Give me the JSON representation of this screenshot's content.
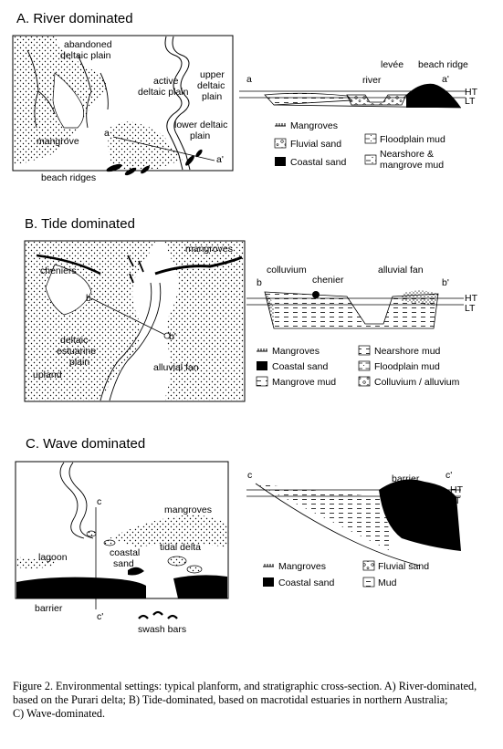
{
  "panels": {
    "river": {
      "title": "A. River dominated",
      "plan_labels": {
        "abandoned": "abandoned",
        "deltaic_plain": "deltaic plain",
        "active": "active",
        "active_deltaic_plain": "deltaic plain",
        "upper": "upper",
        "upper_deltaic": "deltaic",
        "upper_plain": "plain",
        "mangrove": "mangrove",
        "lower_deltaic": "lower deltaic",
        "lower_plain": "plain",
        "beach_ridges": "beach ridges",
        "a": "a",
        "a_prime": "a'"
      },
      "section_labels": {
        "a": "a",
        "a_prime": "a'",
        "river": "river",
        "levee": "levée",
        "beach_ridge": "beach ridge",
        "ht": "HT",
        "lt": "LT"
      },
      "legend": {
        "mangroves": "Mangroves",
        "fluvial_sand": "Fluvial sand",
        "coastal_sand": "Coastal sand",
        "floodplain_mud": "Floodplain mud",
        "nearshore_1": "Nearshore &",
        "nearshore_2": "mangrove mud"
      }
    },
    "tide": {
      "title": "B. Tide dominated",
      "plan_labels": {
        "mangroves": "mangroves",
        "cheniers": "cheniers",
        "b": "b",
        "b_prime": "b'",
        "deltaic": "deltaic-",
        "estuarine": "estuarine",
        "plain": "plain",
        "upland": "upland",
        "alluvial_fan": "alluvial fan"
      },
      "section_labels": {
        "colluvium": "colluvium",
        "chenier": "chenier",
        "alluvial_fan": "alluvial fan",
        "b": "b",
        "b_prime": "b'",
        "ht": "HT",
        "lt": "LT"
      },
      "legend": {
        "mangroves": "Mangroves",
        "coastal_sand": "Coastal sand",
        "mangrove_mud": "Mangrove mud",
        "nearshore_mud": "Nearshore mud",
        "floodplain_mud": "Floodplain mud",
        "colluvium": "Colluvium / alluvium"
      }
    },
    "wave": {
      "title": "C. Wave dominated",
      "plan_labels": {
        "c": "c",
        "c_prime": "c'",
        "mangroves": "mangroves",
        "lagoon": "lagoon",
        "coastal": "coastal",
        "sand": "sand",
        "tidal_delta": "tidal delta",
        "barrier": "barrier",
        "swash_bars": "swash bars"
      },
      "section_labels": {
        "c": "c",
        "c_prime": "c'",
        "barrier": "barrier",
        "ht": "HT",
        "lt": "LT"
      },
      "legend": {
        "mangroves": "Mangroves",
        "coastal_sand": "Coastal sand",
        "fluvial_sand": "Fluvial sand",
        "mud": "Mud"
      }
    }
  },
  "caption": {
    "line1": "Figure 2. Environmental settings: typical planform, and stratigraphic cross-section. A) River-dominated,",
    "line2": "based on the Purari delta; B) Tide-dominated, based on macrotidal estuaries in northern Australia;",
    "line3": "C) Wave-dominated."
  }
}
